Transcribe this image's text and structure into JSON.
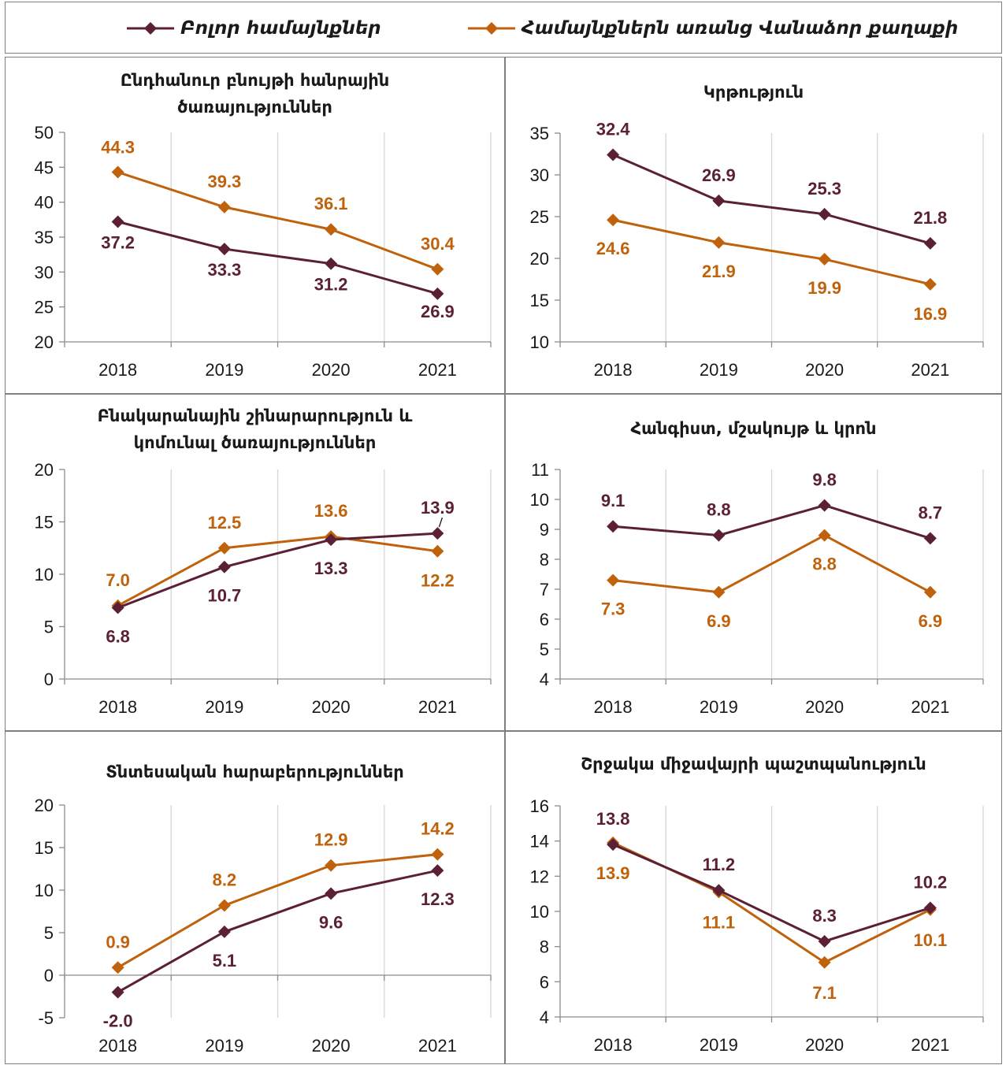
{
  "legend": {
    "all_label": "Բոլոր համայնքներ",
    "excl_label": "Համայնքներն առանց Վանաձոր քաղաքի"
  },
  "colors": {
    "all": "#5c2036",
    "excl": "#c0620c",
    "grid": "#d6d6d6",
    "axis": "#8c8c8c"
  },
  "chart_data": [
    {
      "type": "line",
      "title": "Ընդհանուր բնույթի հանրային ծառայություններ",
      "categories": [
        "2018",
        "2019",
        "2020",
        "2021"
      ],
      "ylim": [
        20,
        50
      ],
      "yticks": [
        "20",
        "25",
        "30",
        "35",
        "40",
        "45",
        "50"
      ],
      "series": [
        {
          "name": "Բոլոր համայնքներ",
          "values": [
            37.2,
            33.3,
            31.2,
            26.9
          ],
          "labels": [
            "37.2",
            "33.3",
            "31.2",
            "26.9"
          ]
        },
        {
          "name": "Համայնքներն առանց Վանաձոր քաղաքի",
          "values": [
            44.3,
            39.3,
            36.1,
            30.4
          ],
          "labels": [
            "44.3",
            "39.3",
            "36.1",
            "30.4"
          ]
        }
      ]
    },
    {
      "type": "line",
      "title": "Կրթություն",
      "categories": [
        "2018",
        "2019",
        "2020",
        "2021"
      ],
      "ylim": [
        10,
        35
      ],
      "yticks": [
        "10",
        "15",
        "20",
        "25",
        "30",
        "35"
      ],
      "series": [
        {
          "name": "Բոլոր համայնքներ",
          "values": [
            32.4,
            26.9,
            25.3,
            21.8
          ],
          "labels": [
            "32.4",
            "26.9",
            "25.3",
            "21.8"
          ]
        },
        {
          "name": "Համայնքներն առանց Վանաձոր քաղաքի",
          "values": [
            24.6,
            21.9,
            19.9,
            16.9
          ],
          "labels": [
            "24.6",
            "21.9",
            "19.9",
            "16.9"
          ]
        }
      ]
    },
    {
      "type": "line",
      "title": "Բնակարանային շինարարություն և կոմունալ ծառայություններ",
      "categories": [
        "2018",
        "2019",
        "2020",
        "2021"
      ],
      "ylim": [
        0,
        20
      ],
      "yticks": [
        "0",
        "5",
        "10",
        "15",
        "20"
      ],
      "series": [
        {
          "name": "Բոլոր համայնքներ",
          "values": [
            6.8,
            10.7,
            13.3,
            13.9
          ],
          "labels": [
            "6.8",
            "10.7",
            "13.3",
            "13.9"
          ]
        },
        {
          "name": "Համայնքներն առանց Վանաձոր քաղաքի",
          "values": [
            7.0,
            12.5,
            13.6,
            12.2
          ],
          "labels": [
            "7.0",
            "12.5",
            "13.6",
            "12.2"
          ]
        }
      ]
    },
    {
      "type": "line",
      "title": "Հանգիստ, մշակույթ և կրոն",
      "categories": [
        "2018",
        "2019",
        "2020",
        "2021"
      ],
      "ylim": [
        4,
        11
      ],
      "yticks": [
        "4",
        "5",
        "6",
        "7",
        "8",
        "9",
        "10",
        "11"
      ],
      "series": [
        {
          "name": "Բոլոր համայնքներ",
          "values": [
            9.1,
            8.8,
            9.8,
            8.7
          ],
          "labels": [
            "9.1",
            "8.8",
            "9.8",
            "8.7"
          ]
        },
        {
          "name": "Համայնքներն առանց Վանաձոր քաղաքի",
          "values": [
            7.3,
            6.9,
            8.8,
            6.9
          ],
          "labels": [
            "7.3",
            "6.9",
            "8.8",
            "6.9"
          ]
        }
      ]
    },
    {
      "type": "line",
      "title": "Տնտեսական հարաբերություններ",
      "categories": [
        "2018",
        "2019",
        "2020",
        "2021"
      ],
      "ylim": [
        -5,
        20
      ],
      "yticks": [
        "-5",
        "0",
        "5",
        "10",
        "15",
        "20"
      ],
      "series": [
        {
          "name": "Բոլոր համայնքներ",
          "values": [
            -2.0,
            5.1,
            9.6,
            12.3
          ],
          "labels": [
            "-2.0",
            "5.1",
            "9.6",
            "12.3"
          ]
        },
        {
          "name": "Համայնքներն առանց Վանաձոր քաղաքի",
          "values": [
            0.9,
            8.2,
            12.9,
            14.2
          ],
          "labels": [
            "0.9",
            "8.2",
            "12.9",
            "14.2"
          ]
        }
      ]
    },
    {
      "type": "line",
      "title": "Շրջակա միջավայրի պաշտպանություն",
      "categories": [
        "2018",
        "2019",
        "2020",
        "2021"
      ],
      "ylim": [
        4,
        16
      ],
      "yticks": [
        "4",
        "6",
        "8",
        "10",
        "12",
        "14",
        "16"
      ],
      "series": [
        {
          "name": "Բոլոր համայնքներ",
          "values": [
            13.8,
            11.2,
            8.3,
            10.2
          ],
          "labels": [
            "13.8",
            "11.2",
            "8.3",
            "10.2"
          ]
        },
        {
          "name": "Համայնքներն առանց Վանաձոր քաղաքի",
          "values": [
            13.9,
            11.1,
            7.1,
            10.1
          ],
          "labels": [
            "13.9",
            "11.1",
            "7.1",
            "10.1"
          ]
        }
      ]
    }
  ]
}
